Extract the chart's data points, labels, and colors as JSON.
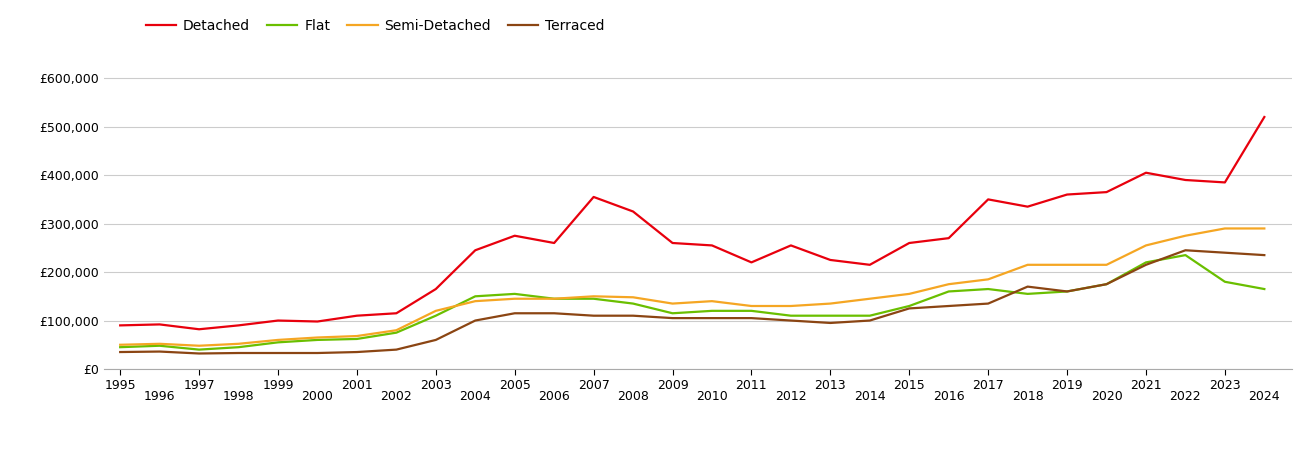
{
  "years": [
    1995,
    1996,
    1997,
    1998,
    1999,
    2000,
    2001,
    2002,
    2003,
    2004,
    2005,
    2006,
    2007,
    2008,
    2009,
    2010,
    2011,
    2012,
    2013,
    2014,
    2015,
    2016,
    2017,
    2018,
    2019,
    2020,
    2021,
    2022,
    2023,
    2024
  ],
  "detached": [
    90000,
    92000,
    82000,
    90000,
    100000,
    98000,
    110000,
    115000,
    165000,
    245000,
    275000,
    260000,
    355000,
    325000,
    260000,
    255000,
    220000,
    255000,
    225000,
    215000,
    260000,
    270000,
    350000,
    335000,
    360000,
    365000,
    405000,
    390000,
    385000,
    520000
  ],
  "flat": [
    45000,
    48000,
    40000,
    45000,
    55000,
    60000,
    62000,
    75000,
    110000,
    150000,
    155000,
    145000,
    145000,
    135000,
    115000,
    120000,
    120000,
    110000,
    110000,
    110000,
    130000,
    160000,
    165000,
    155000,
    160000,
    175000,
    220000,
    235000,
    180000,
    165000
  ],
  "semi_detached": [
    50000,
    52000,
    48000,
    52000,
    60000,
    65000,
    68000,
    80000,
    120000,
    140000,
    145000,
    145000,
    150000,
    148000,
    135000,
    140000,
    130000,
    130000,
    135000,
    145000,
    155000,
    175000,
    185000,
    215000,
    215000,
    215000,
    255000,
    275000,
    290000,
    290000
  ],
  "terraced": [
    35000,
    36000,
    32000,
    33000,
    33000,
    33000,
    35000,
    40000,
    60000,
    100000,
    115000,
    115000,
    110000,
    110000,
    105000,
    105000,
    105000,
    100000,
    95000,
    100000,
    125000,
    130000,
    135000,
    170000,
    160000,
    175000,
    215000,
    245000,
    240000,
    235000
  ],
  "colors": {
    "detached": "#e8000d",
    "flat": "#6abf00",
    "semi_detached": "#f5a623",
    "terraced": "#8B4513"
  },
  "ylim": [
    0,
    650000
  ],
  "yticks": [
    0,
    100000,
    200000,
    300000,
    400000,
    500000,
    600000
  ],
  "ytick_labels": [
    "£0",
    "£100,000",
    "£200,000",
    "£300,000",
    "£400,000",
    "£500,000",
    "£600,000"
  ],
  "xlim_left": 1994.6,
  "xlim_right": 2024.7,
  "background_color": "#ffffff",
  "grid_color": "#cccccc",
  "line_width": 1.6,
  "odd_years": [
    1995,
    1997,
    1999,
    2001,
    2003,
    2005,
    2007,
    2009,
    2011,
    2013,
    2015,
    2017,
    2019,
    2021,
    2023
  ],
  "even_years": [
    1996,
    1998,
    2000,
    2002,
    2004,
    2006,
    2008,
    2010,
    2012,
    2014,
    2016,
    2018,
    2020,
    2022,
    2024
  ]
}
